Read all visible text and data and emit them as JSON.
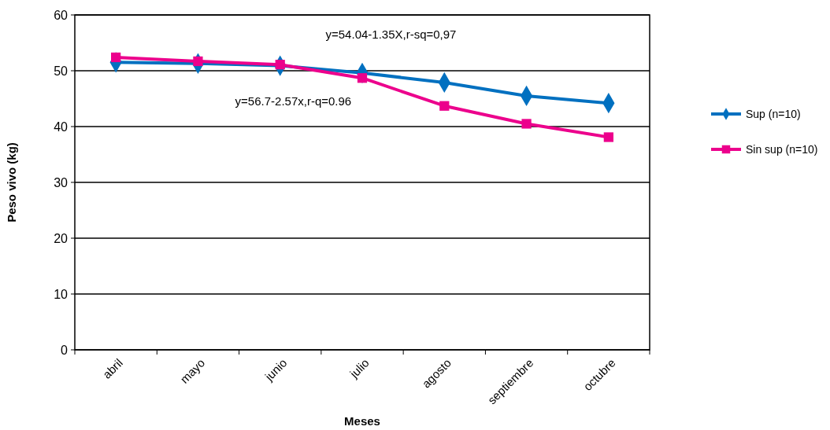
{
  "chart_data": {
    "type": "line",
    "xlabel": "Meses",
    "ylabel": "Peso vivo (kg)",
    "categories": [
      "abril",
      "mayo",
      "junio",
      "julio",
      "agosto",
      "septiembre",
      "octubre"
    ],
    "series": [
      {
        "name": "Sup (n=10)",
        "color": "#0070c0",
        "marker": "diamond",
        "values": [
          51.5,
          51.3,
          50.9,
          49.6,
          47.9,
          45.5,
          44.2
        ]
      },
      {
        "name": "Sin sup (n=10)",
        "color": "#ec008c",
        "marker": "square",
        "values": [
          52.4,
          51.7,
          51.1,
          48.7,
          43.7,
          40.5,
          38.1
        ]
      }
    ],
    "ylim": [
      0,
      60
    ],
    "yticks": [
      0,
      10,
      20,
      30,
      40,
      50,
      60
    ],
    "grid": "y",
    "legend": "right",
    "annotations": [
      "y=54.04-1.35X,r-sq=0,97",
      "y=56.7-2.57x,r-q=0.96"
    ]
  }
}
